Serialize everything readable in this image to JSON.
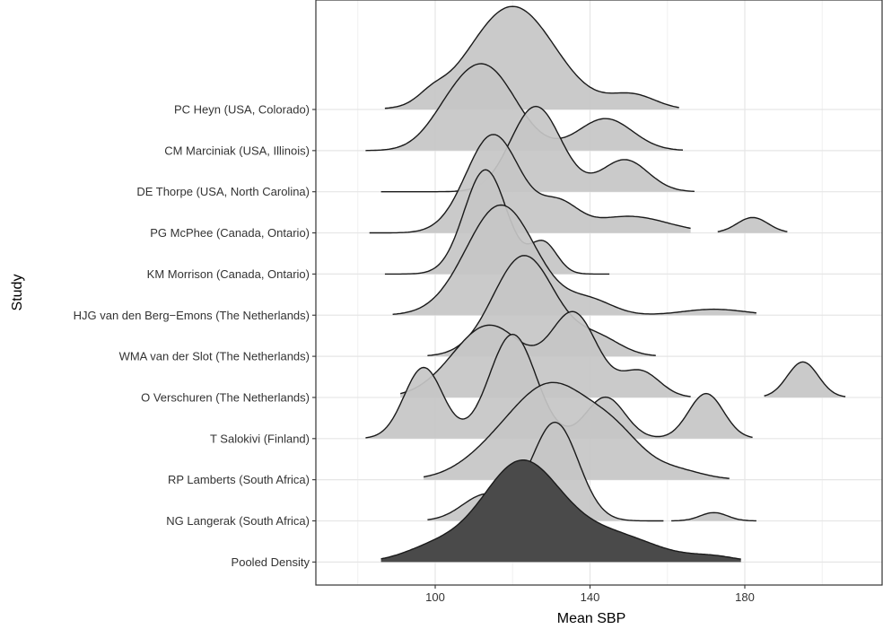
{
  "chart_data": {
    "type": "ridgeline",
    "xlabel": "Mean SBP",
    "ylabel": "Study",
    "xlim": [
      70,
      190
    ],
    "x_ticks": [
      100,
      140,
      180
    ],
    "grid": true,
    "colors": {
      "study_fill": "#c6c6c6",
      "pooled_fill": "#4a4a4a",
      "line": "#1a1a1a",
      "grid": "#e6e6e6"
    },
    "series": [
      {
        "name": "PC Heyn (USA, Colorado)",
        "pooled": false,
        "range": [
          87,
          163
        ],
        "peaks": [
          [
            99,
            0.07,
            3.5
          ],
          [
            120,
            0.87,
            11
          ],
          [
            151,
            0.12,
            6
          ]
        ],
        "scale": 1.0
      },
      {
        "name": "CM Marciniak (USA, Illinois)",
        "pooled": false,
        "range": [
          82,
          164
        ],
        "peaks": [
          [
            103,
            0.15,
            6
          ],
          [
            113,
            0.69,
            8
          ],
          [
            144,
            0.27,
            7
          ]
        ],
        "scale": 1.0
      },
      {
        "name": "DE Thorpe (USA, North Carolina)",
        "pooled": false,
        "range": [
          86,
          167
        ],
        "peaks": [
          [
            126,
            0.72,
            6.5
          ],
          [
            149,
            0.27,
            6
          ]
        ],
        "scale": 1.0
      },
      {
        "name": "PG McPhee (Canada, Ontario)",
        "pooled": false,
        "range": [
          83,
          166
        ],
        "peaks": [
          [
            115,
            0.83,
            7
          ],
          [
            132,
            0.22,
            5
          ],
          [
            150,
            0.14,
            10
          ]
        ],
        "scale": 1.0,
        "extra": {
          "range": [
            173,
            191
          ],
          "peaks": [
            [
              182,
              0.13,
              4
            ]
          ]
        }
      },
      {
        "name": "KM Morrison (Canada, Ontario)",
        "pooled": false,
        "range": [
          87,
          145
        ],
        "peaks": [
          [
            113,
            0.88,
            5.5
          ],
          [
            128,
            0.26,
            3.5
          ]
        ],
        "scale": 1.0
      },
      {
        "name": "HJG van den Berg−Emons (The Netherlands)",
        "pooled": false,
        "range": [
          89,
          183
        ],
        "peaks": [
          [
            117,
            0.93,
            9
          ],
          [
            140,
            0.12,
            6
          ],
          [
            172,
            0.05,
            8
          ]
        ],
        "scale": 1.0
      },
      {
        "name": "WMA van der Slot (The Netherlands)",
        "pooled": false,
        "range": [
          98,
          157
        ],
        "peaks": [
          [
            123,
            0.85,
            8
          ],
          [
            142,
            0.15,
            6
          ]
        ],
        "scale": 1.0
      },
      {
        "name": "O Verschuren (The Netherlands)",
        "pooled": false,
        "range": [
          91,
          166
        ],
        "peaks": [
          [
            114,
            0.61,
            9.5
          ],
          [
            136,
            0.68,
            6
          ],
          [
            153,
            0.22,
            5
          ]
        ],
        "scale": 1.0,
        "extra": {
          "range": [
            185,
            206
          ],
          "peaks": [
            [
              195,
              0.3,
              4
            ]
          ]
        }
      },
      {
        "name": "T Salokivi (Finland)",
        "pooled": false,
        "range": [
          82,
          182
        ],
        "peaks": [
          [
            97,
            0.6,
            5
          ],
          [
            120,
            0.88,
            6
          ],
          [
            144,
            0.35,
            5
          ],
          [
            170,
            0.38,
            4.5
          ]
        ],
        "scale": 1.0
      },
      {
        "name": "RP Lamberts (South Africa)",
        "pooled": false,
        "range": [
          97,
          176
        ],
        "peaks": [
          [
            116,
            0.2,
            9
          ],
          [
            131,
            0.75,
            10
          ],
          [
            147,
            0.28,
            7
          ],
          [
            162,
            0.08,
            7
          ]
        ],
        "scale": 1.0
      },
      {
        "name": "NG Langerak (South Africa)",
        "pooled": false,
        "range": [
          98,
          183
        ],
        "peaks": [
          [
            131,
            0.83,
            6
          ],
          [
            113,
            0.22,
            6
          ],
          [
            172,
            0.07,
            3.5
          ]
        ],
        "scale": 1.0,
        "cut": [
          159,
          161
        ]
      },
      {
        "name": "Pooled Density",
        "pooled": true,
        "range": [
          86,
          179
        ],
        "peaks": [
          [
            122,
            0.82,
            10
          ],
          [
            100,
            0.12,
            8
          ],
          [
            145,
            0.23,
            12
          ],
          [
            172,
            0.04,
            6
          ]
        ],
        "scale": 1.0
      }
    ]
  }
}
